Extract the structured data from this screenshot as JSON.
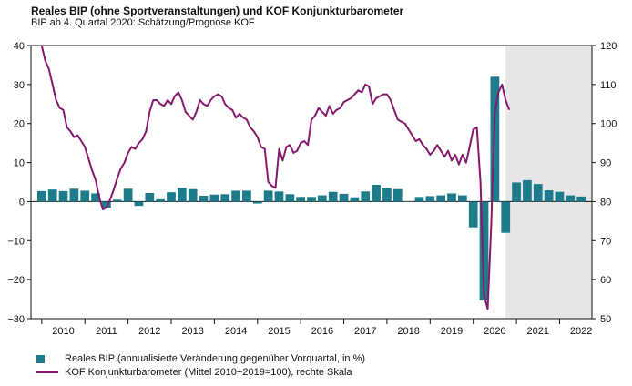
{
  "title": "Reales BIP (ohne Sportveranstaltungen) und KOF Konjunkturbarometer",
  "subtitle": "BIP ab 4. Quartal 2020: Schätzung/Prognose KOF",
  "colors": {
    "bar": "#1e7b8c",
    "line": "#86196e",
    "forecast_bg": "#e6e6e6",
    "axis": "#111111"
  },
  "chart_data": {
    "type": "bar+line",
    "title": "Reales BIP (ohne Sportveranstaltungen) und KOF Konjunkturbarometer",
    "subtitle": "BIP ab 4. Quartal 2020: Schätzung/Prognose KOF",
    "forecast_from": 2020.75,
    "left_axis": {
      "min": -30,
      "max": 40,
      "ticks": [
        40,
        30,
        20,
        10,
        0,
        -10,
        -20,
        -30
      ]
    },
    "right_axis": {
      "min": 50,
      "max": 120,
      "ticks": [
        120,
        110,
        100,
        90,
        80,
        70,
        60,
        50
      ]
    },
    "x_axis": {
      "start": 2009.75,
      "end": 2022.75,
      "year_labels": [
        "2010",
        "2011",
        "2012",
        "2013",
        "2014",
        "2015",
        "2016",
        "2017",
        "2018",
        "2019",
        "2020",
        "2021",
        "2022"
      ]
    },
    "series": [
      {
        "name": "Reales BIP (annualisierte Veränderung gegenüber Vorquartal, in %)",
        "type": "bar",
        "axis": "left",
        "x": [
          2010.0,
          2010.25,
          2010.5,
          2010.75,
          2011.0,
          2011.25,
          2011.5,
          2011.75,
          2012.0,
          2012.25,
          2012.5,
          2012.75,
          2013.0,
          2013.25,
          2013.5,
          2013.75,
          2014.0,
          2014.25,
          2014.5,
          2014.75,
          2015.0,
          2015.25,
          2015.5,
          2015.75,
          2016.0,
          2016.25,
          2016.5,
          2016.75,
          2017.0,
          2017.25,
          2017.5,
          2017.75,
          2018.0,
          2018.25,
          2018.5,
          2018.75,
          2019.0,
          2019.25,
          2019.5,
          2019.75,
          2020.0,
          2020.25,
          2020.5,
          2020.75,
          2021.0,
          2021.25,
          2021.5,
          2021.75,
          2022.0,
          2022.25,
          2022.5
        ],
        "values": [
          2.7,
          3.1,
          2.7,
          3.3,
          2.8,
          2.1,
          -1.6,
          0.5,
          3.3,
          -1.1,
          2.2,
          0.6,
          2.4,
          3.5,
          3.2,
          1.5,
          1.8,
          1.9,
          2.8,
          2.8,
          -0.5,
          2.8,
          2.6,
          1.9,
          1.2,
          1.2,
          1.6,
          2.5,
          2.0,
          1.1,
          2.6,
          4.3,
          3.5,
          3.2,
          0.1,
          1.2,
          1.4,
          1.6,
          2.1,
          1.6,
          -6.6,
          -25.3,
          32.0,
          -8.0,
          4.9,
          5.5,
          4.5,
          2.9,
          2.5,
          1.6,
          1.3
        ]
      },
      {
        "name": "KOF Konjunkturbarometer (Mittel 2010−2019=100), rechte Skala",
        "type": "line",
        "axis": "right",
        "x_start": 2010.0,
        "x_step": 0.0833333,
        "values": [
          120,
          116,
          114,
          110,
          106,
          104,
          103.5,
          99,
          98,
          96.5,
          97,
          95.5,
          94,
          91,
          88,
          85.5,
          81,
          78,
          78.5,
          80.5,
          83,
          86,
          88.5,
          90,
          92.5,
          94,
          93.5,
          95,
          96,
          98,
          103,
          106,
          106,
          105,
          104.5,
          106,
          105,
          107,
          108,
          106,
          103,
          102,
          101,
          103,
          106,
          105,
          104.5,
          106,
          107,
          107.5,
          107,
          105,
          104,
          103.5,
          101.5,
          102.5,
          101.5,
          101,
          99,
          98,
          96.5,
          94,
          93.5,
          85,
          84,
          83.5,
          93.5,
          90.5,
          94,
          94.5,
          92.5,
          93,
          95,
          95.5,
          94.5,
          101,
          102,
          104,
          103,
          102,
          104.5,
          102.5,
          103.5,
          104,
          105.5,
          106,
          106.5,
          107.5,
          108.5,
          108,
          110,
          109.5,
          105,
          106.5,
          107,
          107.5,
          107.5,
          106,
          103.5,
          101,
          100.5,
          100,
          98.5,
          97,
          95.5,
          96,
          94.5,
          93.5,
          92,
          93,
          94.5,
          93,
          91.5,
          93,
          90.5,
          92,
          89.5,
          92,
          90,
          94,
          98.5,
          99,
          85,
          56,
          52.5,
          74,
          103,
          108,
          110,
          106,
          103.5
        ]
      }
    ]
  },
  "legend": {
    "bar_label": "Reales BIP (annualisierte Veränderung gegenüber Vorquartal, in %)",
    "line_label": "KOF Konjunkturbarometer (Mittel 2010−2019=100), rechte Skala"
  }
}
